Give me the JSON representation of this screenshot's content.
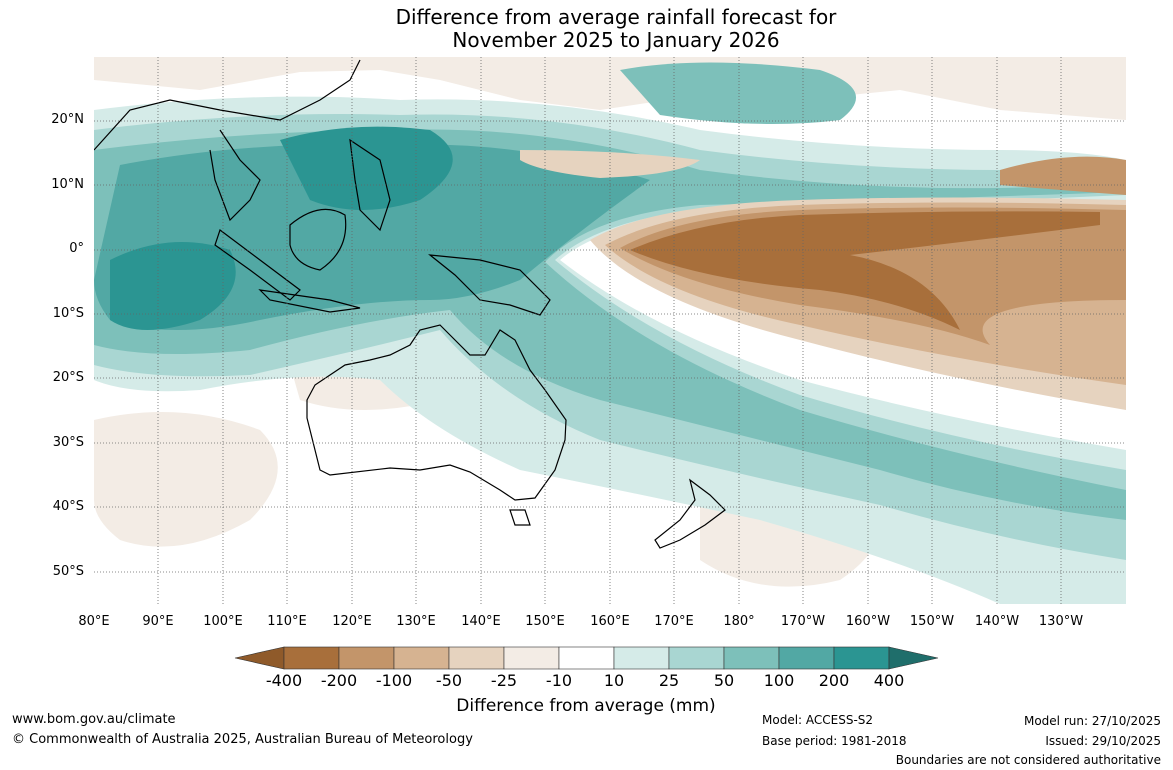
{
  "title": {
    "line1": "Difference from average rainfall forecast for",
    "line2": "November 2025 to January 2026"
  },
  "map": {
    "lat_labels": [
      "20°N",
      "10°N",
      "0°",
      "10°S",
      "20°S",
      "30°S",
      "40°S",
      "50°S"
    ],
    "lon_labels": [
      "80°E",
      "90°E",
      "100°E",
      "110°E",
      "120°E",
      "130°E",
      "140°E",
      "150°E",
      "160°E",
      "170°E",
      "180°",
      "170°W",
      "160°W",
      "150°W",
      "140°W",
      "130°W"
    ]
  },
  "colorbar": {
    "title": "Difference from average (mm)",
    "labels": [
      "-400",
      "-200",
      "-100",
      "-50",
      "-25",
      "-10",
      "10",
      "25",
      "50",
      "100",
      "200",
      "400"
    ],
    "colors": [
      "#8f5a2a",
      "#a86f3b",
      "#c3956a",
      "#d6b391",
      "#e6d3bf",
      "#f3ece5",
      "#ffffff",
      "#d5ebe8",
      "#a9d6d2",
      "#7dc0ba",
      "#52a8a4",
      "#2b9592",
      "#1f6e6b"
    ]
  },
  "footer": {
    "website": "www.bom.gov.au/climate",
    "copyright": "© Commonwealth of Australia 2025, Australian Bureau of Meteorology",
    "model": "Model: ACCESS-S2",
    "base_period": "Base period: 1981-2018",
    "model_run": "Model run: 27/10/2025",
    "issued": "Issued: 29/10/2025",
    "disclaimer": "Boundaries are not considered authoritative"
  }
}
